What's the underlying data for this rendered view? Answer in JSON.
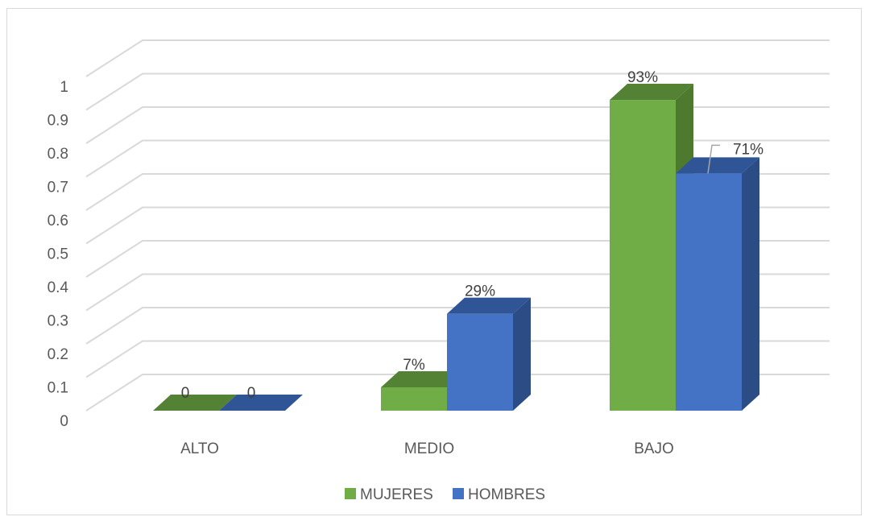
{
  "chart_data": {
    "type": "bar",
    "three_d": true,
    "categories": [
      "ALTO",
      "MEDIO",
      "BAJO"
    ],
    "series": [
      {
        "name": "MUJERES",
        "values": [
          0,
          0.07,
          0.93
        ],
        "labels": [
          "0",
          "7%",
          "93%"
        ],
        "color": "#70ad47",
        "top_color": "#548235",
        "side_color": "#4d7a2e"
      },
      {
        "name": "HOMBRES",
        "values": [
          0,
          0.29,
          0.71
        ],
        "labels": [
          "0",
          "29%",
          "71%"
        ],
        "color": "#4472c4",
        "top_color": "#2f5597",
        "side_color": "#2b4c85"
      }
    ],
    "y_ticks": [
      "0",
      "0.1",
      "0.2",
      "0.3",
      "0.4",
      "0.5",
      "0.6",
      "0.7",
      "0.8",
      "0.9",
      "1"
    ],
    "ylim": [
      0,
      1
    ],
    "grid": true,
    "gridline_color": "#d9d9d9",
    "legend_position": "bottom",
    "title": "",
    "xlabel": "",
    "ylabel": ""
  }
}
